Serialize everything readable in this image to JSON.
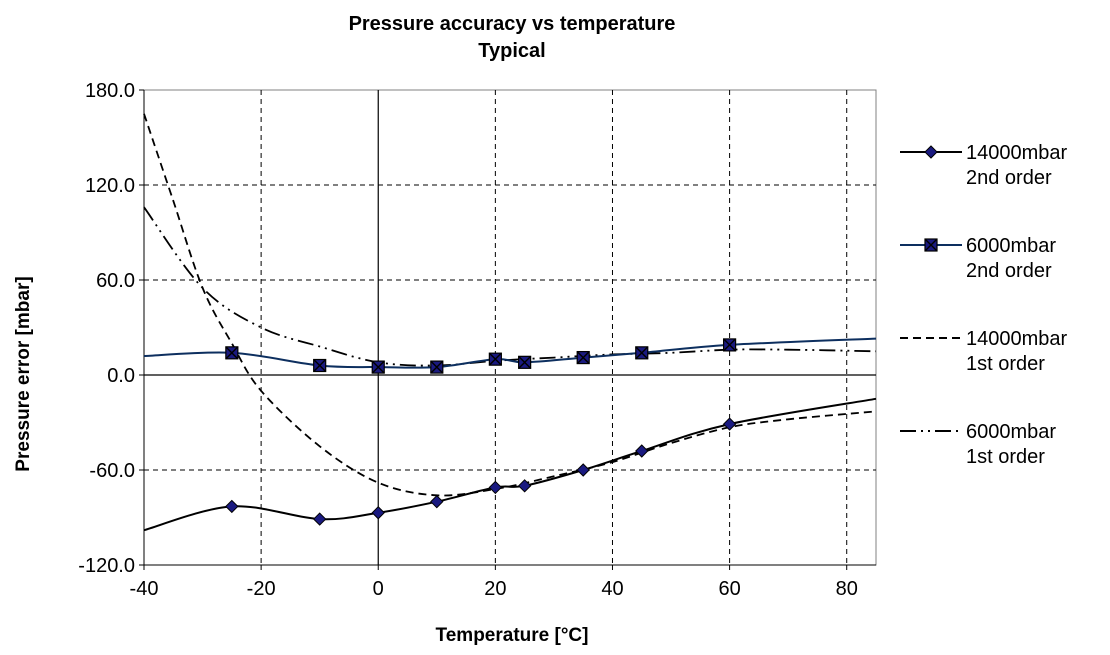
{
  "chart_data": {
    "type": "line",
    "title": "Pressure accuracy vs temperature",
    "subtitle": "Typical",
    "xlabel": "Temperature [°C]",
    "ylabel": "Pressure error [mbar]",
    "xlim": [
      -40,
      85
    ],
    "ylim": [
      -120,
      180
    ],
    "x_ticks": [
      -40,
      -20,
      0,
      20,
      40,
      60,
      80
    ],
    "y_ticks": [
      -120,
      -60,
      0,
      60,
      120,
      180
    ],
    "x_tick_labels": [
      "-40",
      "-20",
      "0",
      "20",
      "40",
      "60",
      "80"
    ],
    "y_tick_labels": [
      "-120.0",
      "-60.0",
      "0.0",
      "60.0",
      "120.0",
      "180.0"
    ],
    "grid": true,
    "legend_position": "right",
    "series": [
      {
        "name": "14000mbar 2nd order",
        "legend_lines": [
          "14000mbar",
          "2nd order"
        ],
        "style": "solid",
        "marker": "diamond",
        "color": "#000000",
        "marker_color": "#1a1a80",
        "points": [
          [
            -40,
            -98
          ],
          [
            -25,
            -83
          ],
          [
            -10,
            -91
          ],
          [
            0,
            -87
          ],
          [
            10,
            -80
          ],
          [
            20,
            -71
          ],
          [
            25,
            -70
          ],
          [
            35,
            -60
          ],
          [
            45,
            -48
          ],
          [
            60,
            -31
          ],
          [
            85,
            -15
          ]
        ],
        "marker_x": [
          -25,
          -10,
          0,
          10,
          20,
          25,
          35,
          45,
          60
        ]
      },
      {
        "name": "6000mbar 2nd order",
        "legend_lines": [
          "6000mbar",
          "2nd order"
        ],
        "style": "solid",
        "marker": "square-x",
        "color": "#0d2f5f",
        "marker_color": "#000000",
        "points": [
          [
            -40,
            12
          ],
          [
            -25,
            14
          ],
          [
            -10,
            6
          ],
          [
            0,
            5
          ],
          [
            10,
            5
          ],
          [
            20,
            10
          ],
          [
            25,
            8
          ],
          [
            35,
            11
          ],
          [
            45,
            14
          ],
          [
            60,
            19
          ],
          [
            85,
            23
          ]
        ],
        "marker_x": [
          -25,
          -10,
          0,
          10,
          20,
          25,
          35,
          45,
          60
        ]
      },
      {
        "name": "14000mbar 1st order",
        "legend_lines": [
          "14000mbar",
          "1st order"
        ],
        "style": "dashed",
        "marker": "none",
        "color": "#000000",
        "points": [
          [
            -40,
            165
          ],
          [
            -35,
            110
          ],
          [
            -30,
            55
          ],
          [
            -25,
            20
          ],
          [
            -20,
            -10
          ],
          [
            -10,
            -45
          ],
          [
            0,
            -68
          ],
          [
            10,
            -76
          ],
          [
            20,
            -72
          ],
          [
            30,
            -64
          ],
          [
            40,
            -55
          ],
          [
            50,
            -43
          ],
          [
            60,
            -33
          ],
          [
            70,
            -28
          ],
          [
            85,
            -23
          ]
        ]
      },
      {
        "name": "6000mbar 1st order",
        "legend_lines": [
          "6000mbar",
          "1st order"
        ],
        "style": "dash-dot-dot",
        "marker": "none",
        "color": "#000000",
        "points": [
          [
            -40,
            106
          ],
          [
            -30,
            55
          ],
          [
            -20,
            30
          ],
          [
            -10,
            18
          ],
          [
            0,
            8
          ],
          [
            10,
            6
          ],
          [
            20,
            9
          ],
          [
            30,
            11
          ],
          [
            40,
            13
          ],
          [
            50,
            14
          ],
          [
            60,
            16
          ],
          [
            70,
            16
          ],
          [
            85,
            15
          ]
        ]
      }
    ]
  }
}
